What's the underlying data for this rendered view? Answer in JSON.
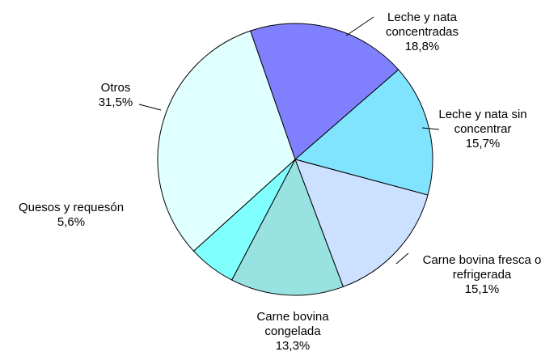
{
  "chart_data": {
    "type": "pie",
    "categories": [
      "Leche y nata concentradas",
      "Leche y nata sin concentrar",
      "Carne bovina fresca o refrigerada",
      "Carne bovina congelada",
      "Quesos y requesón",
      "Otros"
    ],
    "values": [
      18.8,
      15.7,
      15.1,
      13.3,
      5.6,
      31.5
    ],
    "value_labels": [
      "18,8%",
      "15,7%",
      "15,1%",
      "13,3%",
      "5,6%",
      "31,5%"
    ],
    "colors": [
      "#8080ff",
      "#80e4ff",
      "#cce0ff",
      "#99e2e2",
      "#80ffff",
      "#e0ffff"
    ]
  }
}
